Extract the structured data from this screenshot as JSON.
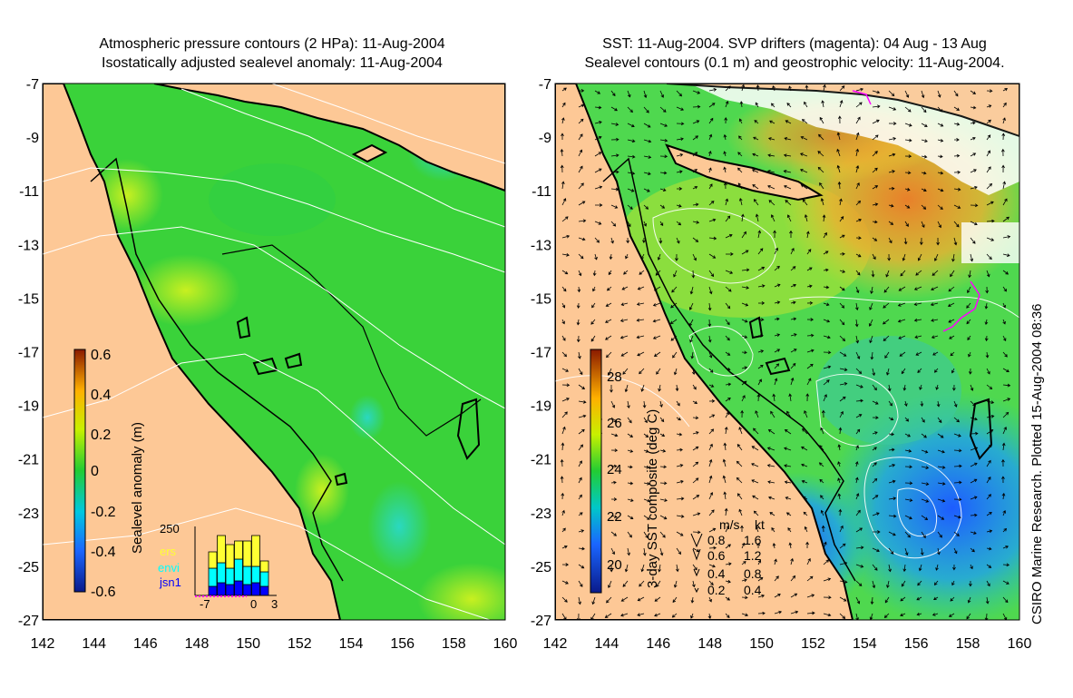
{
  "left_panel": {
    "title_line1": "Atmospheric pressure contours (2 HPa): 11-Aug-2004",
    "title_line2": "Isostatically adjusted sealevel anomaly: 11-Aug-2004",
    "colorbar": {
      "label": "Sealevel anomaly (m)",
      "ticks": [
        "0.6",
        "0.4",
        "0.2",
        "0",
        "-0.2",
        "-0.4",
        "-0.6"
      ],
      "range": [
        -0.6,
        0.6
      ]
    },
    "inset": {
      "y_max_label": "250",
      "x_ticks": [
        "-7",
        "0",
        "3"
      ],
      "legend": [
        {
          "name": "ers",
          "color": "#ffff33"
        },
        {
          "name": "envi",
          "color": "#00ffff"
        },
        {
          "name": "jsn1",
          "color": "#0000ff"
        }
      ]
    }
  },
  "right_panel": {
    "title_line1": "SST: 11-Aug-2004. SVP drifters (magenta): 04 Aug - 13 Aug",
    "title_line2": "Sealevel contours (0.1 m) and geostrophic velocity: 11-Aug-2004.",
    "colorbar": {
      "label": "3-day SST composite (deg C)",
      "ticks": [
        "28",
        "26",
        "24",
        "22",
        "20"
      ],
      "range": [
        19,
        29.5
      ]
    },
    "velocity_legend": {
      "header_ms": "m/s",
      "header_kt": "kt",
      "rows": [
        {
          "ms": "0.8",
          "kt": "1.6"
        },
        {
          "ms": "0.6",
          "kt": "1.2"
        },
        {
          "ms": "0.4",
          "kt": "0.8"
        },
        {
          "ms": "0.2",
          "kt": "0.4"
        }
      ]
    }
  },
  "axes": {
    "lon_ticks": [
      "142",
      "144",
      "146",
      "148",
      "150",
      "152",
      "154",
      "156",
      "158",
      "160"
    ],
    "lat_ticks": [
      "-7",
      "-9",
      "-11",
      "-13",
      "-15",
      "-17",
      "-19",
      "-21",
      "-23",
      "-25",
      "-27"
    ],
    "lon_range": [
      142,
      160
    ],
    "lat_range": [
      -27,
      -7
    ]
  },
  "credit": "CSIRO Marine Research. Plotted 15-Aug-2004 08:36",
  "colors": {
    "land": "#fdc896",
    "sea_left": "#3ad23a",
    "sea_right": "#4fd84f"
  }
}
